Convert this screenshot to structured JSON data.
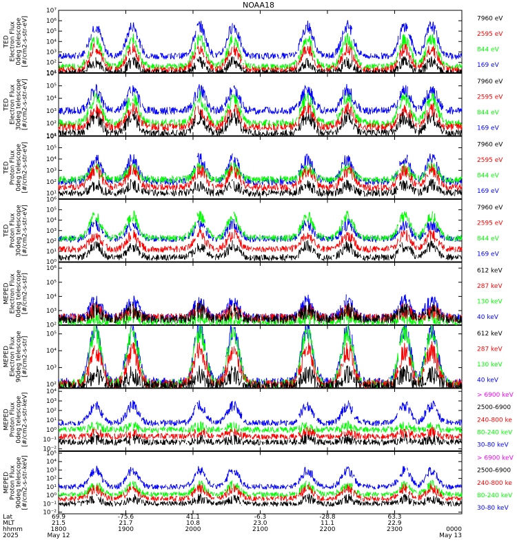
{
  "title": "NOAA18",
  "colors": {
    "blue": "#0000ff",
    "red": "#ff0000",
    "green": "#00ff00",
    "black": "#000000",
    "magenta": "#ff00ff"
  },
  "chart_data": [
    {
      "type": "line",
      "panel": "ted-electron-0deg",
      "ylabel_lines": [
        "TED",
        "Electron Flux",
        "0deg telescope",
        "[#/cm2-s-str-eV]"
      ],
      "yticks": [
        "10¹",
        "10²",
        "10³",
        "10⁴",
        "10⁵",
        "10⁶",
        "10⁷"
      ],
      "ylim_exp": [
        1,
        7
      ],
      "legend": [
        {
          "label": "7960 eV",
          "color": "#000000"
        },
        {
          "label": "2595 eV",
          "color": "#ff0000"
        },
        {
          "label": "844 eV",
          "color": "#00ff00"
        },
        {
          "label": "169 eV",
          "color": "#0000ff"
        }
      ],
      "series_levels": {
        "blue": {
          "base": 2.6,
          "peak": 5.5
        },
        "green": {
          "base": 1.6,
          "peak": 4.2
        },
        "red": {
          "base": 1.3,
          "peak": 3.3
        },
        "black": {
          "base": 1.0,
          "peak": 2.0
        }
      }
    },
    {
      "type": "line",
      "panel": "ted-electron-30deg",
      "ylabel_lines": [
        "TED",
        "Electron Flux",
        "30deg telescope",
        "[#/cm2-s-str-eV]"
      ],
      "yticks": [
        "10¹",
        "10²",
        "10³",
        "10⁴",
        "10⁵",
        "10⁶"
      ],
      "ylim_exp": [
        1,
        6
      ],
      "legend": [
        {
          "label": "7960 eV",
          "color": "#000000"
        },
        {
          "label": "2595 eV",
          "color": "#ff0000"
        },
        {
          "label": "844 eV",
          "color": "#00ff00"
        },
        {
          "label": "169 eV",
          "color": "#0000ff"
        }
      ],
      "series_levels": {
        "blue": {
          "base": 3.0,
          "peak": 4.6
        },
        "green": {
          "base": 2.0,
          "peak": 4.0
        },
        "red": {
          "base": 1.7,
          "peak": 3.1
        },
        "black": {
          "base": 1.2,
          "peak": 2.5
        }
      }
    },
    {
      "type": "line",
      "panel": "ted-proton-0deg",
      "ylabel_lines": [
        "TED",
        "Proton Flux",
        "0deg telescope",
        "[#/cm2-s-str-eV]"
      ],
      "yticks": [
        "10¹",
        "10²",
        "10³",
        "10⁴",
        "10⁵",
        "10⁶"
      ],
      "ylim_exp": [
        0.5,
        6
      ],
      "legend": [
        {
          "label": "7960 eV",
          "color": "#000000"
        },
        {
          "label": "2595 eV",
          "color": "#ff0000"
        },
        {
          "label": "844 eV",
          "color": "#00ff00"
        },
        {
          "label": "169 eV",
          "color": "#0000ff"
        }
      ],
      "series_levels": {
        "blue": {
          "base": 2.0,
          "peak": 4.0
        },
        "green": {
          "base": 2.2,
          "peak": 3.2
        },
        "red": {
          "base": 1.5,
          "peak": 3.0
        },
        "black": {
          "base": 1.0,
          "peak": 1.7
        }
      }
    },
    {
      "type": "line",
      "panel": "ted-proton-30deg",
      "ylabel_lines": [
        "TED",
        "Proton Flux",
        "30deg telescope",
        "[#/cm2-s-str-eV]"
      ],
      "yticks": [
        "10⁰",
        "10¹",
        "10²",
        "10³",
        "10⁴",
        "10⁵",
        "10⁶"
      ],
      "ylim_exp": [
        0,
        6
      ],
      "legend": [
        {
          "label": "7960 eV",
          "color": "#000000"
        },
        {
          "label": "2595 eV",
          "color": "#ff0000"
        },
        {
          "label": "844 eV",
          "color": "#00ff00"
        },
        {
          "label": "169 eV",
          "color": "#0000ff"
        }
      ],
      "series_levels": {
        "blue": {
          "base": 2.2,
          "peak": 3.6
        },
        "green": {
          "base": 2.3,
          "peak": 4.4
        },
        "red": {
          "base": 1.2,
          "peak": 2.6
        },
        "black": {
          "base": 0.4,
          "peak": 1.5
        }
      }
    },
    {
      "type": "line",
      "panel": "meped-electron-0deg",
      "ylabel_lines": [
        "MEPED",
        "Electron Flux",
        "0deg telescope",
        "[#/cm2-s-str]"
      ],
      "yticks": [
        "10²",
        "10³",
        "10⁴",
        "10⁵",
        "10⁶"
      ],
      "ylim_exp": [
        2,
        6.4
      ],
      "legend": [
        {
          "label": "612 keV",
          "color": "#000000"
        },
        {
          "label": "287 keV",
          "color": "#ff0000"
        },
        {
          "label": "130 keV",
          "color": "#00ff00"
        },
        {
          "label": "40 keV",
          "color": "#0000ff"
        }
      ],
      "series_levels": {
        "blue": {
          "base": 2.5,
          "peak": 3.6
        },
        "green": {
          "base": 2.2,
          "peak": 2.5
        },
        "red": {
          "base": 2.5,
          "peak": 3.0
        },
        "black": {
          "base": 2.4,
          "peak": 3.0
        }
      }
    },
    {
      "type": "line",
      "panel": "meped-electron-90deg",
      "ylabel_lines": [
        "MEPED",
        "Electron Flux",
        "90deg telescope",
        "[#/cm2-s-str]"
      ],
      "yticks": [
        "10²",
        "10³",
        "10⁴",
        "10⁵"
      ],
      "ylim_exp": [
        1.8,
        5.5
      ],
      "legend": [
        {
          "label": "612 keV",
          "color": "#000000"
        },
        {
          "label": "287 keV",
          "color": "#ff0000"
        },
        {
          "label": "130 keV",
          "color": "#00ff00"
        },
        {
          "label": "40 keV",
          "color": "#0000ff"
        }
      ],
      "series_levels": {
        "blue": {
          "base": 2.1,
          "peak": 5.3
        },
        "green": {
          "base": 2.0,
          "peak": 5.1
        },
        "red": {
          "base": 2.0,
          "peak": 4.0
        },
        "black": {
          "base": 1.9,
          "peak": 2.6
        }
      }
    },
    {
      "type": "line",
      "panel": "meped-proton-0deg",
      "ylabel_lines": [
        "MEPED",
        "Proton Flux",
        "0deg telescope",
        "[#/cm2-s-str-keV]"
      ],
      "yticks": [
        "10⁻²",
        "10⁻¹",
        "10⁰",
        "10¹",
        "10²",
        "10³",
        "10⁴"
      ],
      "ylim_exp": [
        -2.2,
        4.3
      ],
      "legend": [
        {
          "label": "> 6900 keV",
          "color": "#ff00ff"
        },
        {
          "label": "2500-6900",
          "color": "#000000"
        },
        {
          "label": "240-800 ke",
          "color": "#ff0000"
        },
        {
          "label": "80-240 keV",
          "color": "#00ff00"
        },
        {
          "label": "30-80 keV",
          "color": "#0000ff"
        }
      ],
      "series_levels": {
        "blue": {
          "base": 0.7,
          "peak": 2.5
        },
        "green": {
          "base": 0.0,
          "peak": 0.3
        },
        "red": {
          "base": -0.7,
          "peak": -0.3
        },
        "black": {
          "base": -1.3,
          "peak": -1.0
        }
      }
    },
    {
      "type": "line",
      "panel": "meped-proton-90deg",
      "ylabel_lines": [
        "MEPED",
        "Proton Flux",
        "90deg telescope",
        "[#/cm2-s-str-keV]"
      ],
      "yticks": [
        "10⁻²",
        "10⁻¹",
        "10⁰",
        "10¹",
        "10²",
        "10³",
        "10⁴",
        "10⁵"
      ],
      "ylim_exp": [
        -2.2,
        5.2
      ],
      "legend": [
        {
          "label": "> 6900 keV",
          "color": "#ff00ff"
        },
        {
          "label": "2500-6900",
          "color": "#000000"
        },
        {
          "label": "240-800 ke",
          "color": "#ff0000"
        },
        {
          "label": "80-240 keV",
          "color": "#00ff00"
        },
        {
          "label": "30-80 keV",
          "color": "#0000ff"
        }
      ],
      "series_levels": {
        "blue": {
          "base": 1.0,
          "peak": 3.0
        },
        "green": {
          "base": 0.1,
          "peak": 1.2
        },
        "red": {
          "base": -0.4,
          "peak": 0.8
        },
        "black": {
          "base": -1.0,
          "peak": -0.4
        }
      }
    }
  ],
  "x_axis": {
    "row_labels": [
      "Lat",
      "MLT",
      "hhmm",
      "2025"
    ],
    "ticks": [
      {
        "lat": "69.9",
        "mlt": "21.5",
        "hhmm": "1800",
        "date": "May 12",
        "pos": 0
      },
      {
        "lat": "-75.6",
        "mlt": "21.7",
        "hhmm": "1900",
        "date": "",
        "pos": 1
      },
      {
        "lat": "41.1",
        "mlt": "10.8",
        "hhmm": "2000",
        "date": "",
        "pos": 2
      },
      {
        "lat": "-6.3",
        "mlt": "23.0",
        "hhmm": "2100",
        "date": "",
        "pos": 3
      },
      {
        "lat": "-28.8",
        "mlt": "11.1",
        "hhmm": "2200",
        "date": "",
        "pos": 4
      },
      {
        "lat": "63.3",
        "mlt": "22.9",
        "hhmm": "2300",
        "date": "",
        "pos": 5
      },
      {
        "lat": "",
        "mlt": "",
        "hhmm": "0000",
        "date": "May 13",
        "pos": 6
      }
    ],
    "pass_centers_hours": [
      0.55,
      1.1,
      2.1,
      2.6,
      3.7,
      4.3,
      5.15,
      5.55
    ]
  }
}
